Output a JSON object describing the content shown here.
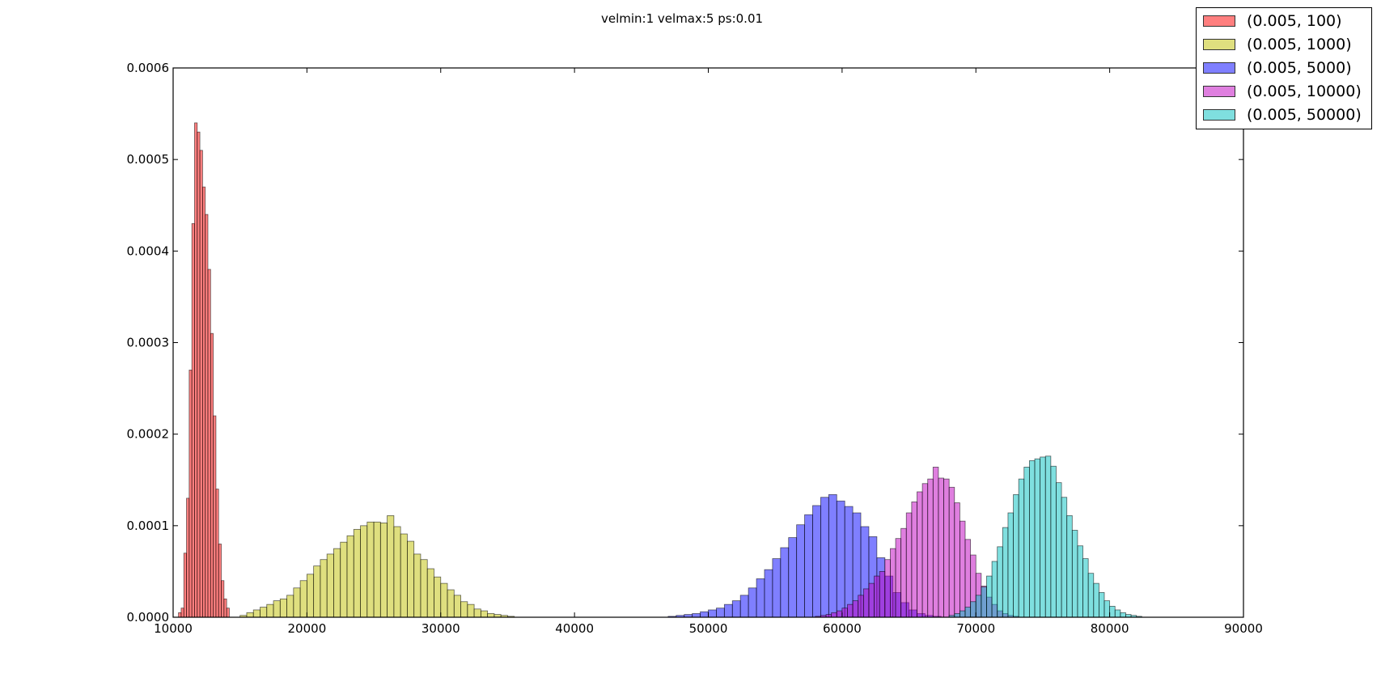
{
  "chart_data": {
    "type": "bar",
    "title": "velmin:1 velmax:5 ps:0.01",
    "xlabel": "",
    "ylabel": "",
    "xlim": [
      10000,
      90000
    ],
    "ylim": [
      0,
      0.0006
    ],
    "xticks": [
      "10000",
      "20000",
      "30000",
      "40000",
      "50000",
      "60000",
      "70000",
      "80000",
      "90000"
    ],
    "yticks": [
      "0.0000",
      "0.0001",
      "0.0002",
      "0.0003",
      "0.0004",
      "0.0005",
      "0.0006"
    ],
    "legend_position": "top-right",
    "grid": false,
    "series": [
      {
        "name": "(0.005, 100)",
        "color": "#ff0000",
        "bin_start": 10400,
        "bin_width": 200,
        "values": [
          5e-06,
          1e-05,
          7e-05,
          0.00013,
          0.00027,
          0.00043,
          0.00054,
          0.00053,
          0.00051,
          0.00047,
          0.00044,
          0.00038,
          0.00031,
          0.00022,
          0.00014,
          8e-05,
          4e-05,
          2e-05,
          1e-05
        ]
      },
      {
        "name": "(0.005, 1000)",
        "color": "#bfbf00",
        "bin_start": 15000,
        "bin_width": 500,
        "values": [
          2e-06,
          5e-06,
          8e-06,
          1.1e-05,
          1.4e-05,
          1.8e-05,
          2e-05,
          2.4e-05,
          3.2e-05,
          4e-05,
          4.7e-05,
          5.6e-05,
          6.3e-05,
          6.9e-05,
          7.5e-05,
          8.2e-05,
          8.9e-05,
          9.6e-05,
          0.0001,
          0.000104,
          0.000104,
          0.000103,
          0.000111,
          9.9e-05,
          9.1e-05,
          8.3e-05,
          6.9e-05,
          6.3e-05,
          5.3e-05,
          4.4e-05,
          3.7e-05,
          3e-05,
          2.4e-05,
          1.7e-05,
          1.4e-05,
          9e-06,
          7e-06,
          4e-06,
          3e-06,
          2e-06,
          1e-06
        ]
      },
      {
        "name": "(0.005, 5000)",
        "color": "#0000ff",
        "bin_start": 47000,
        "bin_width": 600,
        "values": [
          1e-06,
          2e-06,
          3e-06,
          4e-06,
          6e-06,
          8e-06,
          1e-05,
          1.4e-05,
          1.8e-05,
          2.4e-05,
          3.2e-05,
          4.2e-05,
          5.2e-05,
          6.4e-05,
          7.6e-05,
          8.7e-05,
          0.000101,
          0.000112,
          0.000122,
          0.000131,
          0.000134,
          0.000127,
          0.000121,
          0.000114,
          9.9e-05,
          8.8e-05,
          6.5e-05,
          4.5e-05,
          2.7e-05,
          1.6e-05,
          8e-06,
          4e-06,
          2e-06,
          1e-06
        ]
      },
      {
        "name": "(0.005, 10000)",
        "color": "#bf00bf",
        "bin_start": 58000,
        "bin_width": 400,
        "values": [
          1e-06,
          2e-06,
          3e-06,
          5e-06,
          7e-06,
          1e-05,
          1.4e-05,
          1.8e-05,
          2.4e-05,
          3.1e-05,
          3.7e-05,
          4.5e-05,
          5e-05,
          6.3e-05,
          7.5e-05,
          8.6e-05,
          9.7e-05,
          0.000114,
          0.000126,
          0.000137,
          0.000146,
          0.000151,
          0.000164,
          0.000152,
          0.000151,
          0.000142,
          0.000125,
          0.000105,
          8.5e-05,
          6.8e-05,
          4.8e-05,
          3.4e-05,
          2.2e-05,
          1.4e-05,
          7e-06,
          4e-06,
          2e-06,
          1e-06
        ]
      },
      {
        "name": "(0.005, 50000)",
        "color": "#00bfbf",
        "bin_start": 68000,
        "bin_width": 400,
        "values": [
          2e-06,
          4e-06,
          7e-06,
          1.1e-05,
          1.7e-05,
          2.4e-05,
          3.3e-05,
          4.5e-05,
          6.1e-05,
          7.7e-05,
          9.8e-05,
          0.000114,
          0.000134,
          0.000151,
          0.000164,
          0.000171,
          0.000173,
          0.000175,
          0.000176,
          0.000165,
          0.000147,
          0.000131,
          0.000111,
          9.5e-05,
          7.8e-05,
          6.4e-05,
          4.8e-05,
          3.7e-05,
          2.7e-05,
          1.8e-05,
          1.2e-05,
          8e-06,
          5e-06,
          3e-06,
          2e-06,
          1e-06
        ]
      }
    ]
  }
}
